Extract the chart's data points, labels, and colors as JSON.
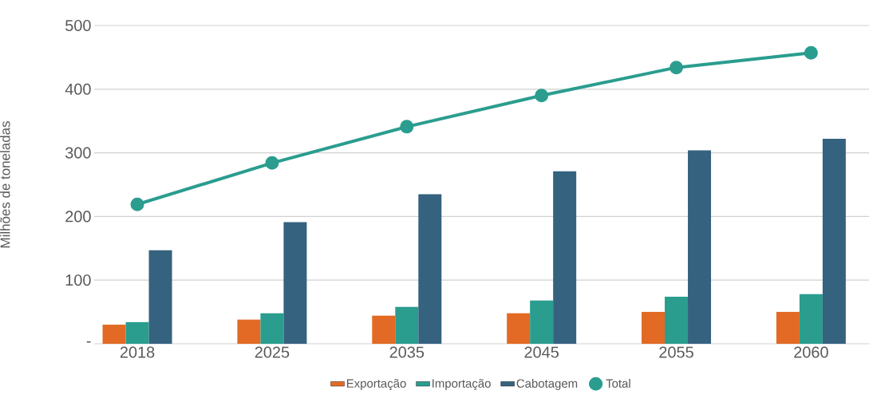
{
  "chart_data": {
    "type": "bar",
    "ylabel": "Milhões de toneladas",
    "categories": [
      "2018",
      "2025",
      "2035",
      "2045",
      "2055",
      "2060"
    ],
    "series": [
      {
        "name": "Exportação",
        "color": "#e36a24",
        "values": [
          30,
          38,
          44,
          48,
          50,
          50
        ]
      },
      {
        "name": "Importação",
        "color": "#2a9d8f",
        "values": [
          34,
          48,
          58,
          68,
          74,
          78
        ]
      },
      {
        "name": "Cabotagem",
        "color": "#35627f",
        "values": [
          147,
          191,
          235,
          271,
          304,
          322
        ]
      },
      {
        "name": "Total",
        "type": "line",
        "color": "#2a9d8f",
        "marker": "circle",
        "values": [
          219,
          284,
          341,
          390,
          434,
          457
        ]
      }
    ],
    "ylim": [
      0,
      500
    ],
    "yticks": [
      {
        "value": 0,
        "label": "-"
      },
      100,
      200,
      300,
      400,
      500
    ],
    "grid": "y",
    "legend": "bottom"
  }
}
